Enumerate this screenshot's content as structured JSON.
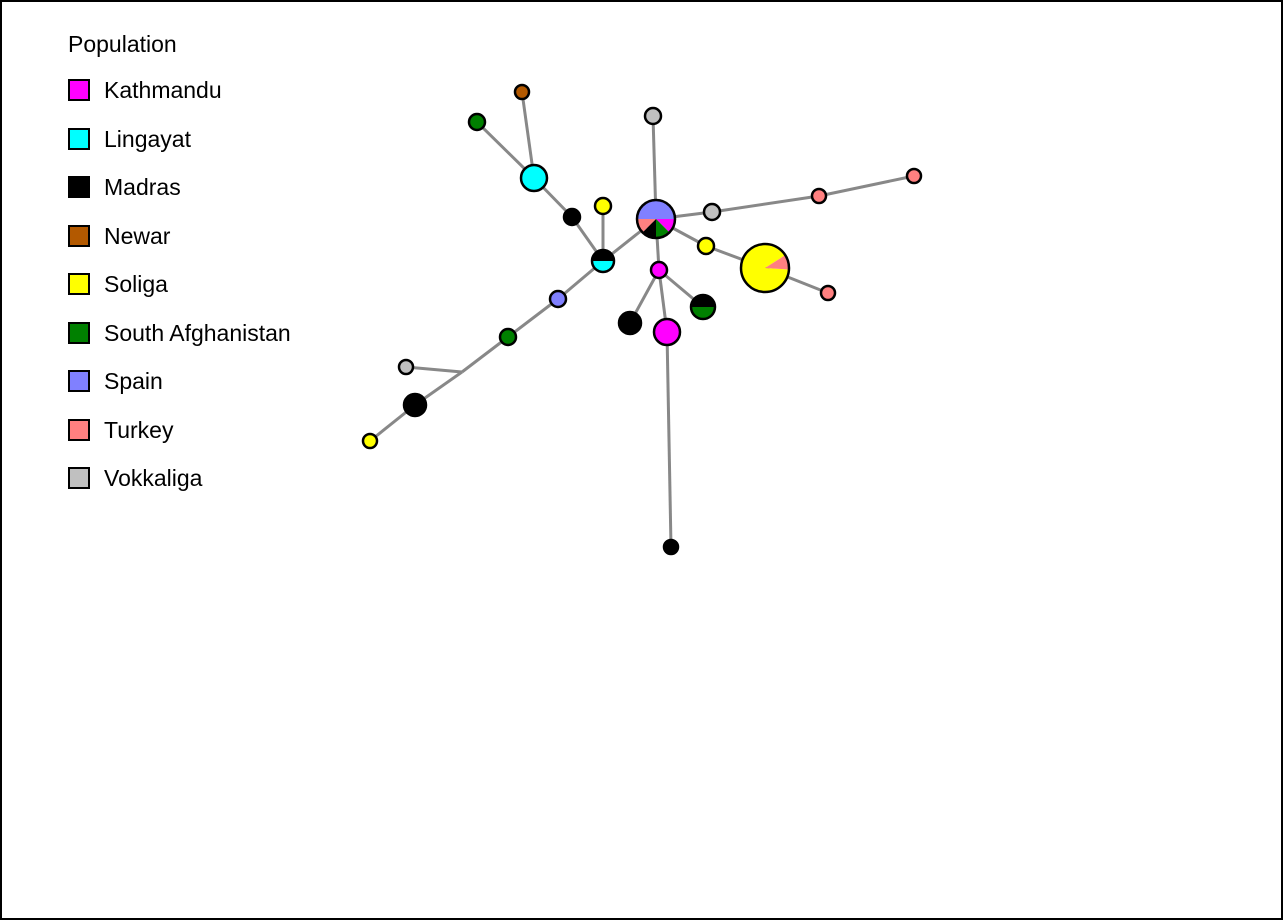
{
  "legend": {
    "title": "Population",
    "items": [
      {
        "label": "Kathmandu",
        "color": "#ff00ff"
      },
      {
        "label": "Lingayat",
        "color": "#00ffff"
      },
      {
        "label": "Madras",
        "color": "#000000"
      },
      {
        "label": "Newar",
        "color": "#b35900"
      },
      {
        "label": "Soliga",
        "color": "#ffff00"
      },
      {
        "label": "South Afghanistan",
        "color": "#008000"
      },
      {
        "label": "Spain",
        "color": "#8080ff"
      },
      {
        "label": "Turkey",
        "color": "#ff8080"
      },
      {
        "label": "Vokkaliga",
        "color": "#c0c0c0"
      }
    ]
  },
  "network": {
    "edge_color": "#888888",
    "nodes": [
      {
        "id": "hub",
        "populations": [
          {
            "pop": "Spain",
            "share": 0.25
          },
          {
            "pop": "Kathmandu",
            "share": 0.125
          },
          {
            "pop": "South Afghanistan",
            "share": 0.125
          },
          {
            "pop": "Madras",
            "share": 0.125
          },
          {
            "pop": "Turkey",
            "share": 0.125
          },
          {
            "pop": "Spain",
            "share": 0.25
          }
        ]
      },
      {
        "id": "n_vok_top",
        "populations": [
          {
            "pop": "Vokkaliga",
            "share": 1
          }
        ]
      },
      {
        "id": "n_vok_right",
        "populations": [
          {
            "pop": "Vokkaliga",
            "share": 1
          }
        ]
      },
      {
        "id": "n_tur_a",
        "populations": [
          {
            "pop": "Turkey",
            "share": 1
          }
        ]
      },
      {
        "id": "n_tur_b",
        "populations": [
          {
            "pop": "Turkey",
            "share": 1
          }
        ]
      },
      {
        "id": "n_sol_small",
        "populations": [
          {
            "pop": "Soliga",
            "share": 1
          }
        ]
      },
      {
        "id": "n_sol_big",
        "populations": [
          {
            "pop": "Soliga",
            "share": 0.9
          },
          {
            "pop": "Turkey",
            "share": 0.1
          }
        ]
      },
      {
        "id": "n_tur_c",
        "populations": [
          {
            "pop": "Turkey",
            "share": 1
          }
        ]
      },
      {
        "id": "n_kath_small",
        "populations": [
          {
            "pop": "Kathmandu",
            "share": 1
          }
        ]
      },
      {
        "id": "n_mad_a",
        "populations": [
          {
            "pop": "Madras",
            "share": 1
          }
        ]
      },
      {
        "id": "n_kath_big",
        "populations": [
          {
            "pop": "Kathmandu",
            "share": 1
          }
        ]
      },
      {
        "id": "n_mad_afg",
        "populations": [
          {
            "pop": "Madras",
            "share": 0.5
          },
          {
            "pop": "South Afghanistan",
            "share": 0.5
          }
        ]
      },
      {
        "id": "n_mad_bottom",
        "populations": [
          {
            "pop": "Madras",
            "share": 1
          }
        ]
      },
      {
        "id": "n_mad_lin",
        "populations": [
          {
            "pop": "Madras",
            "share": 0.5
          },
          {
            "pop": "Lingayat",
            "share": 0.5
          }
        ]
      },
      {
        "id": "n_sol_upper",
        "populations": [
          {
            "pop": "Soliga",
            "share": 1
          }
        ]
      },
      {
        "id": "n_mad_b",
        "populations": [
          {
            "pop": "Madras",
            "share": 1
          }
        ]
      },
      {
        "id": "n_lin",
        "populations": [
          {
            "pop": "Lingayat",
            "share": 1
          }
        ]
      },
      {
        "id": "n_afg_top",
        "populations": [
          {
            "pop": "South Afghanistan",
            "share": 1
          }
        ]
      },
      {
        "id": "n_newar",
        "populations": [
          {
            "pop": "Newar",
            "share": 1
          }
        ]
      },
      {
        "id": "n_spain",
        "populations": [
          {
            "pop": "Spain",
            "share": 1
          }
        ]
      },
      {
        "id": "n_afg_mid",
        "populations": [
          {
            "pop": "South Afghanistan",
            "share": 1
          }
        ]
      },
      {
        "id": "n_vok_left",
        "populations": [
          {
            "pop": "Vokkaliga",
            "share": 1
          }
        ]
      },
      {
        "id": "n_mad_c",
        "populations": [
          {
            "pop": "Madras",
            "share": 1
          }
        ]
      },
      {
        "id": "n_sol_left",
        "populations": [
          {
            "pop": "Soliga",
            "share": 1
          }
        ]
      }
    ],
    "edges": [
      [
        "hub",
        "n_vok_top"
      ],
      [
        "hub",
        "n_vok_right"
      ],
      [
        "n_vok_right",
        "n_tur_a"
      ],
      [
        "n_tur_a",
        "n_tur_b"
      ],
      [
        "hub",
        "n_sol_small"
      ],
      [
        "n_sol_small",
        "n_sol_big"
      ],
      [
        "n_sol_big",
        "n_tur_c"
      ],
      [
        "hub",
        "n_mad_lin"
      ],
      [
        "hub",
        "n_kath_small"
      ],
      [
        "n_kath_small",
        "n_mad_a"
      ],
      [
        "n_kath_small",
        "n_kath_big"
      ],
      [
        "n_kath_small",
        "n_mad_afg"
      ],
      [
        "n_kath_big",
        "n_mad_bottom"
      ],
      [
        "n_mad_lin",
        "n_sol_upper"
      ],
      [
        "n_mad_lin",
        "n_mad_b"
      ],
      [
        "n_mad_b",
        "n_lin"
      ],
      [
        "n_lin",
        "n_afg_top"
      ],
      [
        "n_lin",
        "n_newar"
      ],
      [
        "n_mad_lin",
        "n_spain"
      ],
      [
        "n_spain",
        "n_afg_mid"
      ],
      [
        "n_afg_mid",
        "junction"
      ],
      [
        "junction",
        "n_vok_left"
      ],
      [
        "junction",
        "n_mad_c"
      ],
      [
        "n_mad_c",
        "n_sol_left"
      ]
    ]
  }
}
